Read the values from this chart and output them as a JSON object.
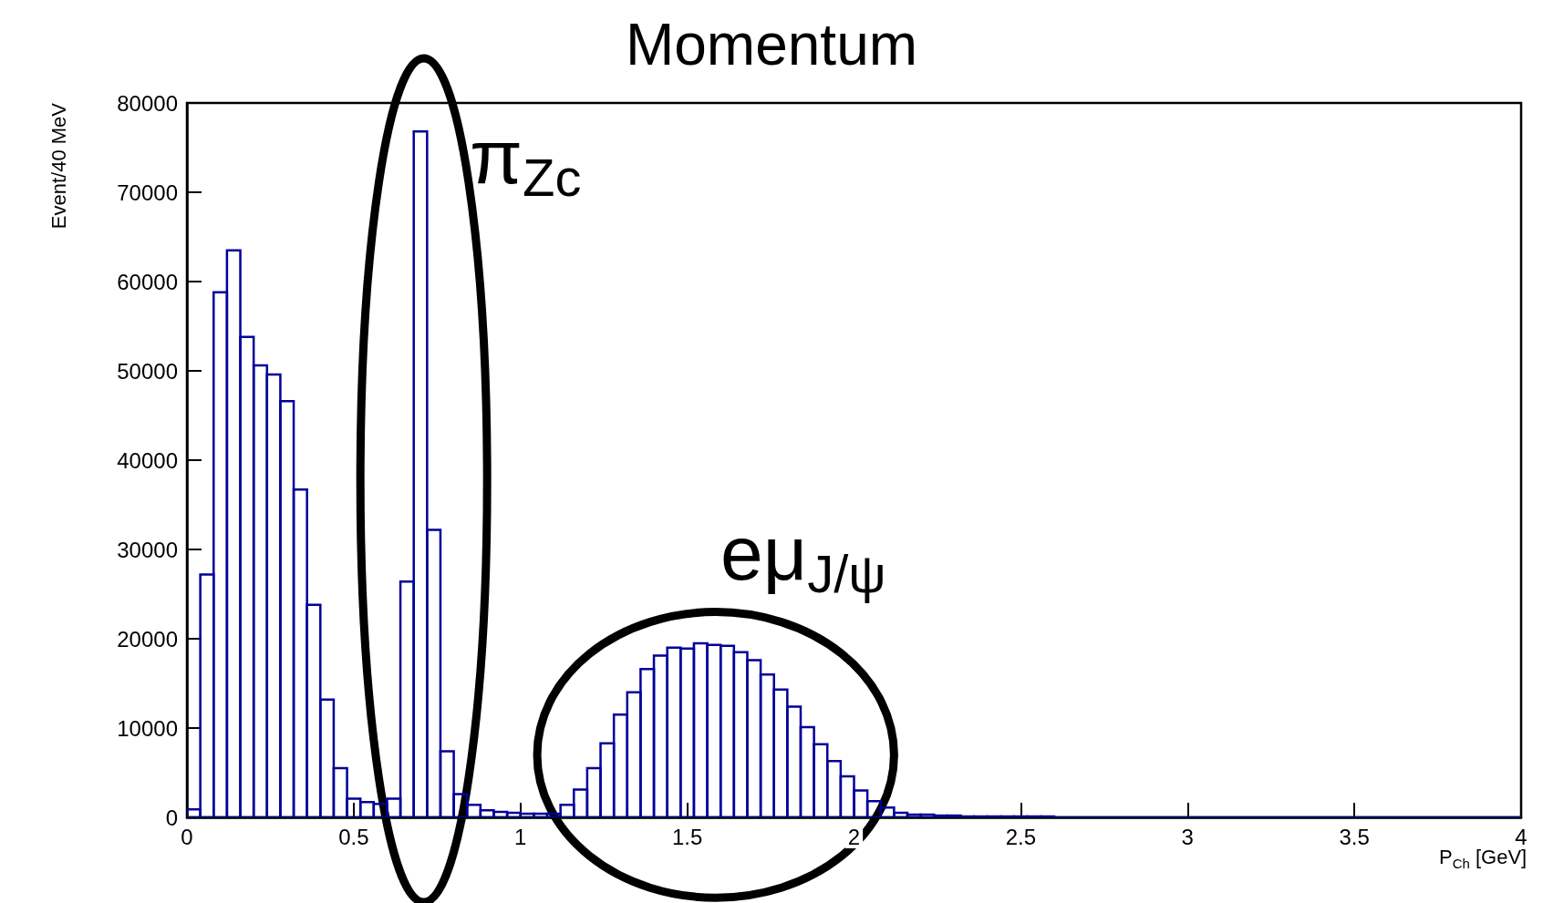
{
  "chart_data": {
    "type": "histogram",
    "title": "Momentum",
    "xlabel": "P$_{Ch}$ [GeV]",
    "ylabel": "Event/40 MeV",
    "color": "#000099",
    "bins": [
      0,
      0.04,
      0.08,
      0.12,
      0.16,
      0.2,
      0.24,
      0.28,
      0.32,
      0.36,
      0.4,
      0.44,
      0.48,
      0.52,
      0.56,
      0.6,
      0.64,
      0.68,
      0.72,
      0.76,
      0.8,
      0.84,
      0.88,
      0.92,
      0.96,
      1,
      1.04,
      1.08,
      1.12,
      1.16,
      1.2,
      1.24,
      1.28,
      1.32,
      1.36,
      1.4,
      1.44,
      1.48,
      1.52,
      1.56,
      1.6,
      1.64,
      1.68,
      1.72,
      1.76,
      1.8,
      1.84,
      1.88,
      1.92,
      1.96,
      2,
      2.04,
      2.08,
      2.12,
      2.16,
      2.2,
      2.24,
      2.28,
      2.32,
      2.36,
      2.4,
      2.44,
      2.48,
      2.52,
      2.56,
      2.6,
      2.64,
      2.68,
      2.72,
      2.76,
      2.8,
      2.84,
      2.88,
      2.92,
      2.96,
      3,
      3.04,
      3.08,
      3.12,
      3.16,
      3.2,
      3.24,
      3.28,
      3.32,
      3.36,
      3.4,
      3.44,
      3.48,
      3.52,
      3.56,
      3.6,
      3.64,
      3.68,
      3.72,
      3.76,
      3.8,
      3.84,
      3.88,
      3.92,
      3.96,
      4
    ],
    "values": [
      900,
      27200,
      58800,
      63500,
      53800,
      50600,
      49600,
      46600,
      36700,
      23800,
      13200,
      5500,
      2100,
      1700,
      1500,
      2100,
      26400,
      76800,
      32200,
      7400,
      2600,
      1400,
      800,
      600,
      500,
      400,
      400,
      400,
      1400,
      3100,
      5500,
      8300,
      11500,
      14000,
      16600,
      18100,
      19000,
      18900,
      19500,
      19300,
      19200,
      18500,
      17600,
      16000,
      14300,
      12400,
      10100,
      8200,
      6300,
      4600,
      3000,
      1800,
      1100,
      500,
      300,
      300,
      200,
      200,
      100,
      100,
      100,
      100,
      100,
      100,
      100,
      0,
      0,
      0,
      0,
      0,
      0,
      0,
      0,
      0,
      0,
      0,
      0,
      0,
      0,
      0,
      0,
      0,
      0,
      0,
      0,
      0,
      0,
      0,
      0,
      0,
      0,
      0,
      0,
      0,
      0,
      0,
      0,
      0,
      0,
      0
    ],
    "xlim": [
      0,
      4
    ],
    "xticks": [
      0,
      0.5,
      1,
      1.5,
      2,
      2.5,
      3,
      3.5,
      4
    ],
    "ylim": [
      0,
      80000
    ],
    "yticks": [
      0,
      10000,
      20000,
      30000,
      40000,
      50000,
      60000,
      70000,
      80000
    ],
    "grid": false,
    "annotations": [
      "π$_{Zc}$",
      "eμ$_{J/ψ}$"
    ]
  }
}
